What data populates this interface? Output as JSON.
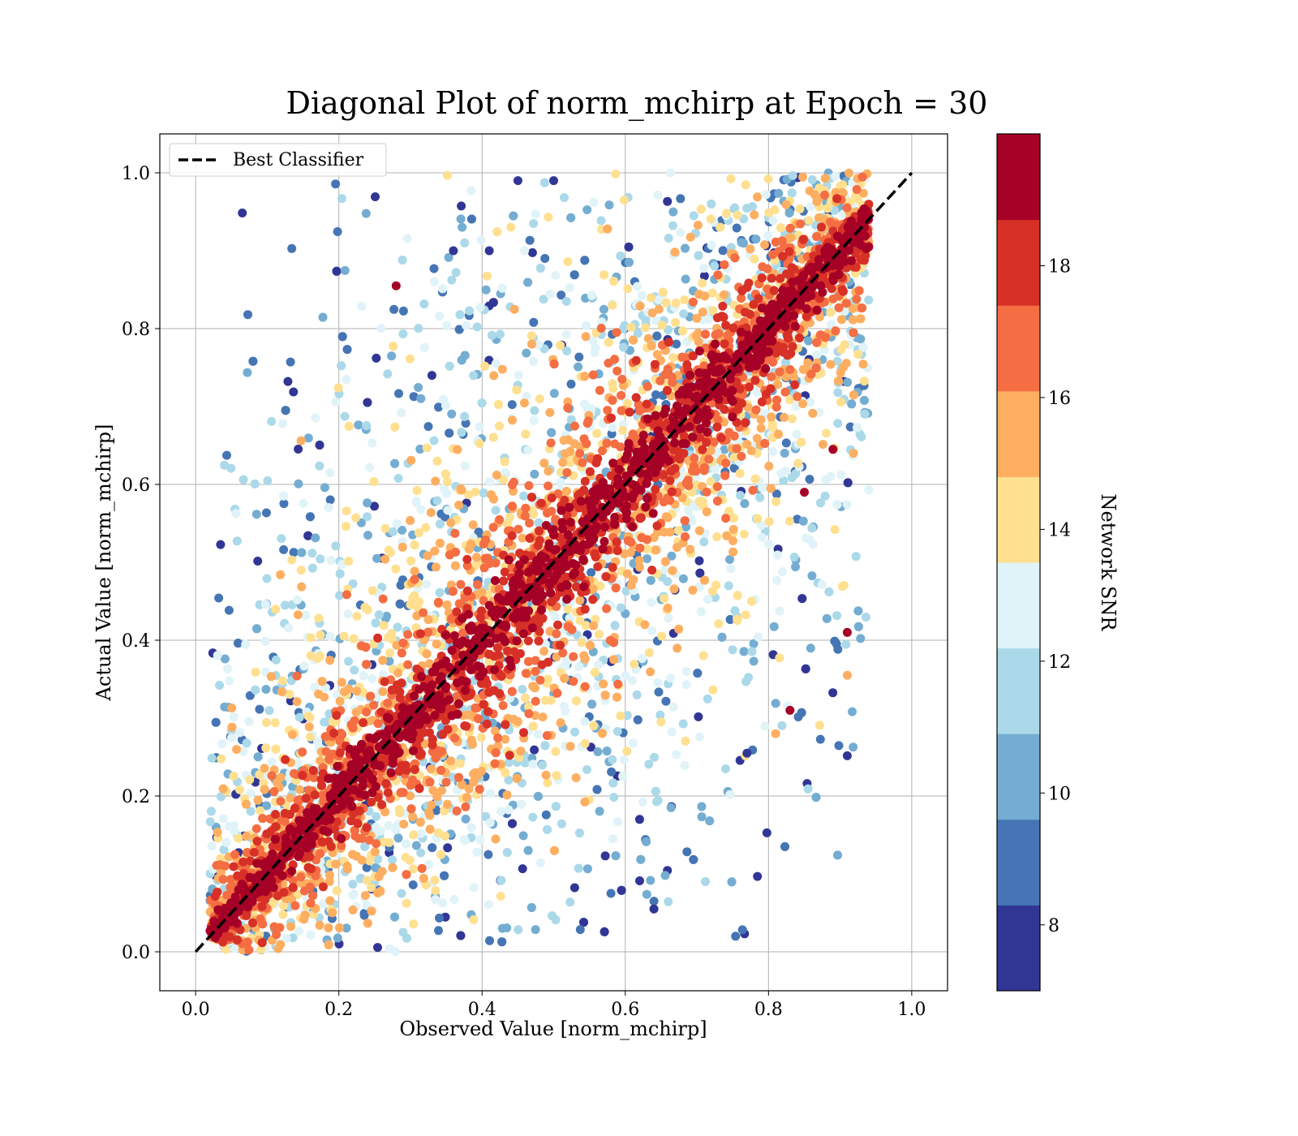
{
  "chart_data": {
    "type": "scatter",
    "title": "Diagonal Plot of norm_mchirp at Epoch = 30",
    "xlabel": "Observed Value [norm_mchirp]",
    "ylabel": "Actual Value [norm_mchirp]",
    "xlim": [
      -0.05,
      1.05
    ],
    "ylim": [
      -0.05,
      1.05
    ],
    "xticks": [
      "0.0",
      "0.2",
      "0.4",
      "0.6",
      "0.8",
      "1.0"
    ],
    "yticks": [
      "0.0",
      "0.2",
      "0.4",
      "0.6",
      "0.8",
      "1.0"
    ],
    "grid": true,
    "legend": {
      "position": "top-left",
      "entries": [
        "Best Classifier"
      ]
    },
    "reference_line": {
      "name": "Best Classifier",
      "x": [
        0.0,
        1.0
      ],
      "y": [
        0.0,
        1.0
      ],
      "style": "dashed",
      "color": "#000000"
    },
    "colorbar": {
      "label": "Network SNR",
      "range": [
        7,
        20
      ],
      "ticks": [
        "8",
        "10",
        "12",
        "14",
        "16",
        "18"
      ],
      "tick_values": [
        8,
        10,
        12,
        14,
        16,
        18
      ],
      "colors": [
        "#313695",
        "#4575b4",
        "#74add1",
        "#abd9e9",
        "#e0f3f8",
        "#fee090",
        "#fdae61",
        "#f46d43",
        "#d73027",
        "#a50026"
      ],
      "boundaries": [
        7.0,
        8.3,
        9.6,
        10.9,
        12.2,
        13.5,
        14.8,
        16.1,
        17.4,
        18.7,
        20.0
      ]
    },
    "points": [
      {
        "x": 0.28,
        "y": 0.855,
        "snr": 19.5
      },
      {
        "x": 0.45,
        "y": 0.99,
        "snr": 7.5
      },
      {
        "x": 0.5,
        "y": 0.99,
        "snr": 7.5
      },
      {
        "x": 0.33,
        "y": 0.74,
        "snr": 7.5
      },
      {
        "x": 0.36,
        "y": 0.9,
        "snr": 7.5
      },
      {
        "x": 0.41,
        "y": 0.9,
        "snr": 7.5
      },
      {
        "x": 0.94,
        "y": 0.905,
        "snr": 19.5
      },
      {
        "x": 0.91,
        "y": 0.41,
        "snr": 19.5
      },
      {
        "x": 0.91,
        "y": 0.355,
        "snr": 15.5
      },
      {
        "x": 0.89,
        "y": 0.645,
        "snr": 19.5
      },
      {
        "x": 0.85,
        "y": 0.59,
        "snr": 19.5
      },
      {
        "x": 0.77,
        "y": 0.255,
        "snr": 7.5
      },
      {
        "x": 0.74,
        "y": 0.235,
        "snr": 11.5
      },
      {
        "x": 0.64,
        "y": 0.065,
        "snr": 8.5
      },
      {
        "x": 0.64,
        "y": 0.055,
        "snr": 7.5
      },
      {
        "x": 0.62,
        "y": 0.17,
        "snr": 7.5
      },
      {
        "x": 0.58,
        "y": 0.075,
        "snr": 8.5
      },
      {
        "x": 0.81,
        "y": 0.28,
        "snr": 15.5
      },
      {
        "x": 0.83,
        "y": 0.31,
        "snr": 19.5
      }
    ]
  }
}
